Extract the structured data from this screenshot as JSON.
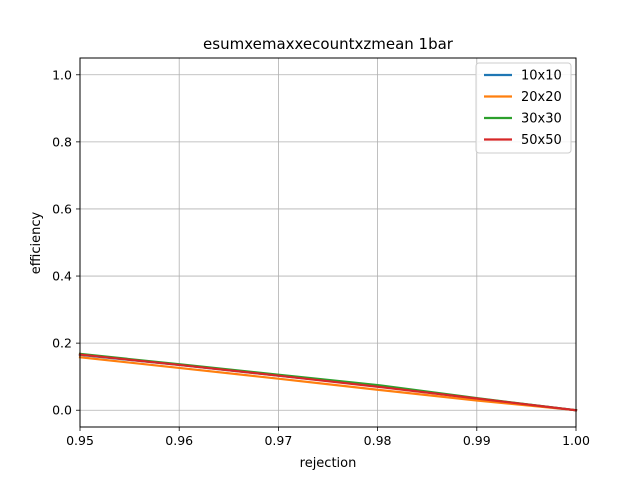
{
  "chart_data": {
    "type": "line",
    "title": "esumxemaxxecountxzmean 1bar",
    "xlabel": "rejection",
    "ylabel": "efficiency",
    "xlim": [
      0.95,
      1.0
    ],
    "ylim": [
      -0.05,
      1.05
    ],
    "xticks": [
      "0.95",
      "0.96",
      "0.97",
      "0.98",
      "0.99",
      "1.00"
    ],
    "yticks": [
      "0.0",
      "0.2",
      "0.4",
      "0.6",
      "0.8",
      "1.0"
    ],
    "grid": true,
    "legend_position": "top-right",
    "series": [
      {
        "name": "10x10",
        "color": "#1f77b4",
        "x": [
          0.95,
          0.96,
          0.97,
          0.98,
          0.99,
          1.0
        ],
        "y": [
          0.165,
          0.135,
          0.103,
          0.072,
          0.035,
          0.0
        ]
      },
      {
        "name": "20x20",
        "color": "#ff7f0e",
        "x": [
          0.95,
          0.96,
          0.97,
          0.98,
          0.99,
          1.0
        ],
        "y": [
          0.158,
          0.126,
          0.094,
          0.061,
          0.029,
          0.0
        ]
      },
      {
        "name": "30x30",
        "color": "#2ca02c",
        "x": [
          0.95,
          0.96,
          0.97,
          0.98,
          0.99,
          1.0
        ],
        "y": [
          0.168,
          0.137,
          0.106,
          0.075,
          0.036,
          0.0
        ]
      },
      {
        "name": "50x50",
        "color": "#d62728",
        "x": [
          0.95,
          0.96,
          0.97,
          0.98,
          0.99,
          1.0
        ],
        "y": [
          0.166,
          0.135,
          0.103,
          0.07,
          0.035,
          0.0
        ]
      }
    ]
  }
}
